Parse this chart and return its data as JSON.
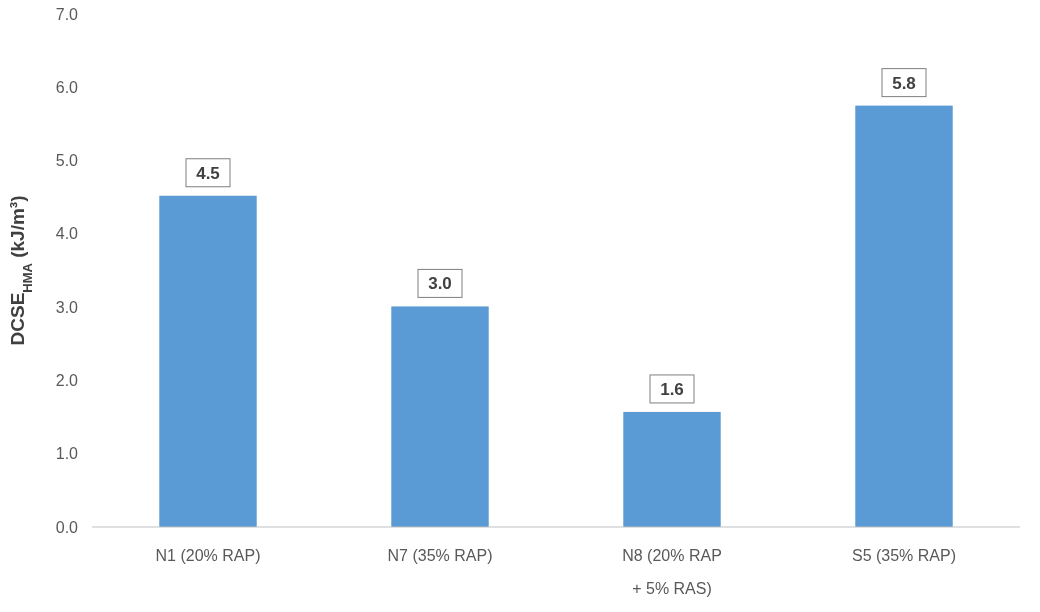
{
  "chart_data": {
    "type": "bar",
    "ylabel": "DCSE$_{HMA}$ (kJ/m³)",
    "categories": [
      "N1 (20% RAP)",
      "N7 (35% RAP)",
      "N8 (20% RAP + 5% RAS)",
      "S5 (35% RAP)"
    ],
    "values": [
      4.52,
      3.01,
      1.57,
      5.75
    ],
    "value_labels": [
      "4.5",
      "3.0",
      "1.6",
      "5.8"
    ],
    "color": "#5b9bd5",
    "ylim": [
      0,
      7
    ],
    "yticks": [
      {
        "value": 0,
        "label": "0.0"
      },
      {
        "value": 1,
        "label": "1.0"
      },
      {
        "value": 2,
        "label": "2.0"
      },
      {
        "value": 3,
        "label": "3.0"
      },
      {
        "value": 4,
        "label": "4.0"
      },
      {
        "value": 5,
        "label": "5.0"
      },
      {
        "value": 6,
        "label": "6.0"
      },
      {
        "value": 7,
        "label": "7.0"
      }
    ],
    "grid": false
  }
}
